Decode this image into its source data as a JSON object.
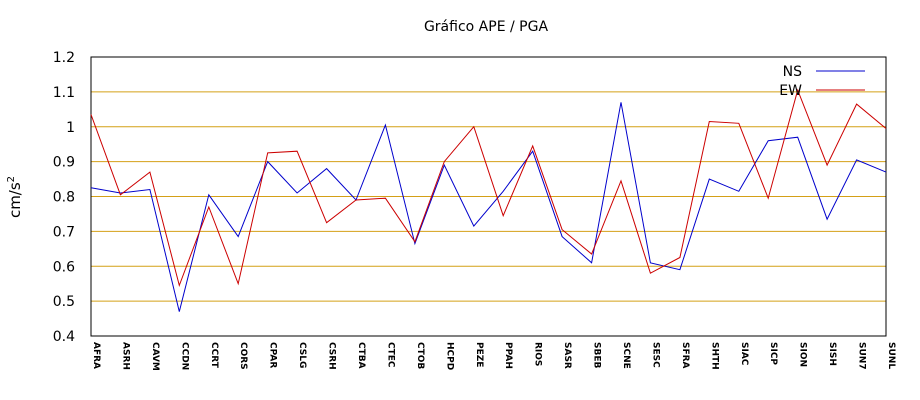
{
  "chart_data": {
    "type": "line",
    "title": "Gráfico  APE / PGA",
    "ylabel": "cm/s",
    "ylabel_superscript": "2",
    "ylim": [
      0.4,
      1.2
    ],
    "yticks": [
      "0.4",
      "0.5",
      "0.6",
      "0.7",
      "0.8",
      "0.9",
      "1",
      "1.1",
      "1.2"
    ],
    "grid": "horizontal",
    "legend_position": "top-right",
    "categories": [
      "AFRA",
      "ASRH",
      "CAVM",
      "CCDN",
      "CCRT",
      "CORS",
      "CPAR",
      "CSLG",
      "CSRH",
      "CTBA",
      "CTEC",
      "CTOB",
      "HCPD",
      "PEZE",
      "PPAH",
      "RIOS",
      "SASR",
      "SBEB",
      "SCNE",
      "SESC",
      "SFRA",
      "SHTH",
      "SIAC",
      "SICP",
      "SION",
      "SISH",
      "SUN7",
      "SUNL"
    ],
    "series": [
      {
        "name": "NS",
        "color": "#0000cc",
        "values": [
          0.825,
          0.81,
          0.82,
          0.47,
          0.805,
          0.685,
          0.9,
          0.81,
          0.88,
          0.79,
          1.005,
          0.665,
          0.89,
          0.715,
          0.815,
          0.93,
          0.685,
          0.61,
          1.07,
          0.61,
          0.59,
          0.85,
          0.815,
          0.96,
          0.97,
          0.735,
          0.905,
          0.87
        ]
      },
      {
        "name": "EW",
        "color": "#cc0000",
        "values": [
          1.035,
          0.805,
          0.87,
          0.545,
          0.77,
          0.55,
          0.925,
          0.93,
          0.725,
          0.79,
          0.795,
          0.67,
          0.9,
          1.0,
          0.745,
          0.945,
          0.705,
          0.635,
          0.845,
          0.58,
          0.625,
          1.015,
          1.01,
          0.795,
          1.105,
          0.89,
          1.065,
          0.995
        ]
      }
    ]
  }
}
